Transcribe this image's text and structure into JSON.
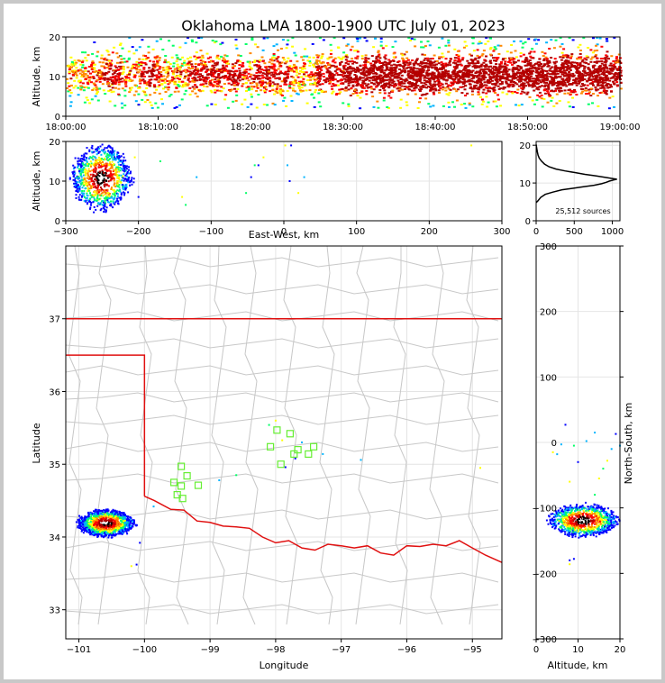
{
  "title": "Oklahoma LMA 1800-1900 UTC July 01, 2023",
  "colors": {
    "state_border": "#e01010",
    "county_lines": "#c8c8c8",
    "grid": "#e4e4e4",
    "station": "#66ee33",
    "density_scale": [
      "#0000ff",
      "#00b4ff",
      "#00ff66",
      "#ffff00",
      "#ff8800",
      "#ff0000",
      "#b40000",
      "#000000",
      "#ffffff"
    ]
  },
  "chart_data": [
    {
      "id": "time-height",
      "type": "heatmap",
      "xlabel": "",
      "ylabel": "Altitude, km",
      "xlim": [
        "18:00:00",
        "19:00:00"
      ],
      "ylim": [
        0,
        20
      ],
      "x_ticks": [
        "18:00:00",
        "18:10:00",
        "18:20:00",
        "18:30:00",
        "18:40:00",
        "18:50:00",
        "19:00:00"
      ],
      "y_ticks": [
        0,
        10,
        20
      ],
      "density_by_minute": [
        2,
        2,
        2,
        2,
        3,
        3,
        2,
        2,
        3,
        3,
        2,
        2,
        2,
        3,
        3,
        3,
        3,
        3,
        3,
        2,
        3,
        3,
        3,
        3,
        2,
        2,
        2,
        3,
        3,
        3,
        4,
        4,
        4,
        5,
        5,
        4,
        4,
        5,
        5,
        5,
        4,
        4,
        4,
        5,
        5,
        5,
        5,
        4,
        4,
        5,
        5,
        5,
        5,
        5,
        5,
        4,
        4,
        5,
        5,
        4
      ],
      "core_altitude_km": [
        8,
        13
      ]
    },
    {
      "id": "east-west-altitude",
      "type": "scatter",
      "xlabel": "East-West, km",
      "ylabel": "Altitude, km",
      "xlim": [
        -300,
        300
      ],
      "ylim": [
        0,
        20
      ],
      "x_ticks": [
        -300,
        -200,
        -100,
        0,
        100,
        200,
        300
      ],
      "y_ticks": [
        0,
        10,
        20
      ],
      "clusters": [
        {
          "x_km": -252,
          "alt_km": 11,
          "rx_km": 40,
          "ry_km": 8
        }
      ],
      "scattered_points": [
        [
          -205,
          16
        ],
        [
          -200,
          6
        ],
        [
          -170,
          15
        ],
        [
          -140,
          6
        ],
        [
          -135,
          4
        ],
        [
          -120,
          11
        ],
        [
          -52,
          7
        ],
        [
          -45,
          11
        ],
        [
          -40,
          14
        ],
        [
          -35,
          14
        ],
        [
          -28,
          16
        ],
        [
          2,
          19
        ],
        [
          5,
          14
        ],
        [
          8,
          10
        ],
        [
          10,
          19
        ],
        [
          20,
          7
        ],
        [
          28,
          11
        ],
        [
          258,
          19
        ]
      ]
    },
    {
      "id": "altitude-histogram",
      "type": "line",
      "xlabel": "",
      "ylabel": "",
      "xlim": [
        0,
        1100
      ],
      "ylim": [
        0,
        21
      ],
      "x_ticks": [
        0,
        500,
        1000
      ],
      "y_ticks": [
        0,
        10,
        20
      ],
      "annotation": "25,512 sources",
      "x": [
        0,
        20,
        60,
        120,
        220,
        340,
        480,
        620,
        760,
        860,
        920,
        960,
        1020,
        1060,
        1000,
        900,
        780,
        640,
        500,
        380,
        260,
        170,
        110,
        70,
        40,
        25,
        15,
        10,
        5,
        0
      ],
      "y": [
        4.8,
        5.2,
        6.2,
        7.0,
        7.6,
        8.2,
        8.6,
        9.0,
        9.4,
        9.8,
        10.2,
        10.5,
        10.8,
        11.0,
        11.2,
        11.5,
        11.9,
        12.3,
        12.8,
        13.2,
        13.7,
        14.3,
        15.0,
        15.8,
        16.6,
        17.4,
        18.3,
        19.0,
        19.6,
        20.2
      ]
    },
    {
      "id": "plan-view-map",
      "type": "scatter",
      "xlabel": "Longitude",
      "ylabel": "Latitude",
      "xlim": [
        -101.2,
        -94.55
      ],
      "ylim": [
        32.6,
        38.0
      ],
      "x_ticks": [
        -101,
        -100,
        -99,
        -98,
        -97,
        -96,
        -95
      ],
      "y_ticks": [
        33,
        34,
        35,
        36,
        37
      ],
      "stations": [
        [
          -97.98,
          35.47
        ],
        [
          -97.78,
          35.42
        ],
        [
          -98.08,
          35.24
        ],
        [
          -97.66,
          35.2
        ],
        [
          -97.42,
          35.24
        ],
        [
          -97.72,
          35.14
        ],
        [
          -97.5,
          35.14
        ],
        [
          -97.92,
          35.0
        ],
        [
          -99.18,
          34.71
        ],
        [
          -99.44,
          34.7
        ],
        [
          -99.55,
          34.75
        ],
        [
          -99.35,
          34.84
        ],
        [
          -99.44,
          34.97
        ],
        [
          -99.5,
          34.58
        ],
        [
          -99.42,
          34.53
        ]
      ],
      "clusters": [
        {
          "lon": -100.6,
          "lat": 34.2,
          "rx_deg": 0.42,
          "ry_deg": 0.18
        }
      ],
      "scattered_points": [
        [
          -100.12,
          33.62
        ],
        [
          -100.2,
          33.6
        ],
        [
          -100.07,
          33.92
        ],
        [
          -99.86,
          34.42
        ],
        [
          -98.1,
          35.54
        ],
        [
          -98.0,
          35.6
        ],
        [
          -97.9,
          35.33
        ],
        [
          -97.6,
          35.3
        ],
        [
          -97.7,
          35.08
        ],
        [
          -97.85,
          34.96
        ],
        [
          -97.28,
          35.14
        ],
        [
          -96.7,
          35.06
        ],
        [
          -94.88,
          34.95
        ],
        [
          -98.86,
          34.78
        ],
        [
          -98.6,
          34.85
        ]
      ]
    },
    {
      "id": "altitude-north-south",
      "type": "scatter",
      "xlabel": "Altitude, km",
      "ylabel": "North-South, km",
      "xlim": [
        0,
        20
      ],
      "ylim": [
        -300,
        300
      ],
      "x_ticks": [
        0,
        10,
        20
      ],
      "y_ticks": [
        -300,
        -200,
        -100,
        0,
        100,
        200,
        300
      ],
      "clusters": [
        {
          "alt_km": 11,
          "y_km": -118,
          "rx_km": 8,
          "ry_km": 24
        }
      ],
      "scattered_points": [
        [
          4,
          -15
        ],
        [
          5,
          -18
        ],
        [
          6,
          -3
        ],
        [
          7,
          27
        ],
        [
          8,
          -60
        ],
        [
          9,
          -5
        ],
        [
          10,
          -30
        ],
        [
          12,
          2
        ],
        [
          14,
          15
        ],
        [
          14,
          -80
        ],
        [
          15,
          -55
        ],
        [
          16,
          -40
        ],
        [
          17,
          -28
        ],
        [
          18,
          -10
        ],
        [
          19,
          13
        ],
        [
          20,
          -5
        ],
        [
          8,
          -180
        ],
        [
          8,
          -186
        ],
        [
          9,
          -178
        ]
      ]
    }
  ]
}
